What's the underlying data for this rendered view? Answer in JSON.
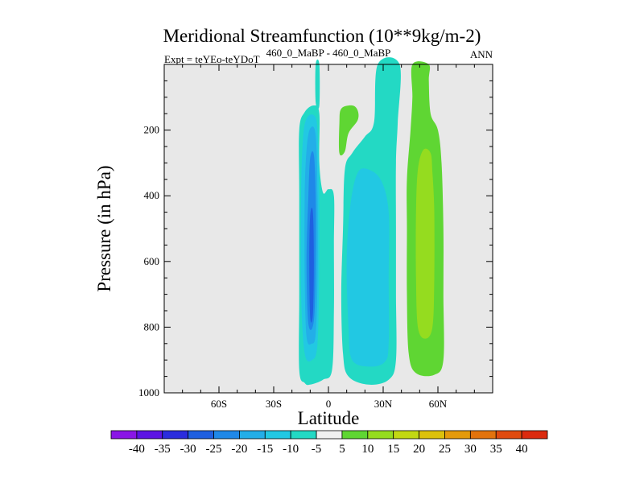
{
  "chart_data": {
    "type": "contour",
    "title": "Meridional Streamfunction (10**9kg/m-2)",
    "subtitle_left": "Expt = teYEo-teYDoT",
    "subtitle_center": "460_0_MaBP - 460_0_MaBP",
    "subtitle_right": "ANN",
    "xlabel": "Latitude",
    "ylabel": "Pressure (in hPa)",
    "xlim": [
      -90,
      90
    ],
    "ylim": [
      1000,
      0
    ],
    "x_ticks": [
      {
        "value": -60,
        "label": "60S"
      },
      {
        "value": -30,
        "label": "30S"
      },
      {
        "value": 0,
        "label": "0"
      },
      {
        "value": 30,
        "label": "30N"
      },
      {
        "value": 60,
        "label": "60N"
      }
    ],
    "y_ticks": [
      {
        "value": 200,
        "label": "200"
      },
      {
        "value": 400,
        "label": "400"
      },
      {
        "value": 600,
        "label": "600"
      },
      {
        "value": 800,
        "label": "800"
      },
      {
        "value": 1000,
        "label": "1000"
      }
    ],
    "background_color": "#e8e8e8",
    "colorbar": {
      "levels": [
        "-40",
        "-35",
        "-30",
        "-25",
        "-20",
        "-15",
        "-10",
        "-5",
        "5",
        "10",
        "15",
        "20",
        "25",
        "30",
        "35",
        "40"
      ],
      "colors": [
        "#8a16e6",
        "#5c14e3",
        "#2b2ddd",
        "#1f5fe0",
        "#1f88e8",
        "#23aee8",
        "#22c8e3",
        "#23d9c4",
        "#f0f0f0",
        "#5fd633",
        "#95dc1f",
        "#c2d812",
        "#dcc10c",
        "#e49a0c",
        "#e2730d",
        "#e04a0e",
        "#db2a0e"
      ]
    },
    "regions": [
      {
        "name": "southern-cell-outer",
        "level": "-10 to -5",
        "color": "#23d9c4",
        "outline": [
          [
            -13,
            970
          ],
          [
            -16,
            930
          ],
          [
            -16,
            700
          ],
          [
            -16,
            400
          ],
          [
            -16,
            200
          ],
          [
            -13,
            145
          ],
          [
            -8,
            125
          ],
          [
            -5,
            150
          ],
          [
            -5,
            300
          ],
          [
            -3,
            390
          ],
          [
            0,
            380
          ],
          [
            3,
            400
          ],
          [
            3,
            550
          ],
          [
            3,
            750
          ],
          [
            2,
            930
          ],
          [
            -3,
            960
          ],
          [
            -10,
            975
          ]
        ]
      },
      {
        "name": "southern-cell-band2",
        "level": "-15 to -10",
        "color": "#22c8e3",
        "outline": [
          [
            -13,
            880
          ],
          [
            -15,
            700
          ],
          [
            -15,
            400
          ],
          [
            -14,
            230
          ],
          [
            -12,
            165
          ],
          [
            -8,
            155
          ],
          [
            -6,
            200
          ],
          [
            -5,
            400
          ],
          [
            -5,
            600
          ],
          [
            -6,
            850
          ],
          [
            -9,
            900
          ]
        ]
      },
      {
        "name": "southern-cell-band3",
        "level": "-20 to -15",
        "color": "#23aee8",
        "outline": [
          [
            -12,
            830
          ],
          [
            -13,
            650
          ],
          [
            -13,
            400
          ],
          [
            -12,
            260
          ],
          [
            -10,
            195
          ],
          [
            -7,
            215
          ],
          [
            -6,
            400
          ],
          [
            -6,
            650
          ],
          [
            -7,
            820
          ],
          [
            -9,
            850
          ]
        ]
      },
      {
        "name": "southern-cell-band4",
        "level": "-25 to -20",
        "color": "#1f88e8",
        "outline": [
          [
            -11,
            790
          ],
          [
            -12,
            600
          ],
          [
            -11,
            400
          ],
          [
            -10,
            285
          ],
          [
            -8,
            275
          ],
          [
            -7,
            400
          ],
          [
            -7,
            600
          ],
          [
            -8,
            780
          ]
        ]
      },
      {
        "name": "southern-cell-core",
        "level": "-30 to -25",
        "color": "#1f5fe0",
        "outline": [
          [
            -10,
            770
          ],
          [
            -10.5,
            600
          ],
          [
            -10,
            460
          ],
          [
            -8.5,
            450
          ],
          [
            -8,
            600
          ],
          [
            -8.5,
            760
          ]
        ]
      },
      {
        "name": "northern-cell-outer",
        "level": "-10 to -5",
        "color": "#23d9c4",
        "outline": [
          [
            -7,
            0
          ],
          [
            -7,
            115
          ],
          [
            -5,
            125
          ],
          [
            -5,
            0
          ]
        ]
      },
      {
        "name": "northern-cell-outer-2",
        "level": "-10 to -5",
        "color": "#23d9c4",
        "outline": [
          [
            11,
            950
          ],
          [
            8,
            880
          ],
          [
            7,
            700
          ],
          [
            8,
            500
          ],
          [
            9,
            320
          ],
          [
            13,
            270
          ],
          [
            20,
            220
          ],
          [
            25,
            175
          ],
          [
            27,
            0
          ],
          [
            39,
            0
          ],
          [
            38,
            175
          ],
          [
            37,
            300
          ],
          [
            37,
            500
          ],
          [
            37,
            700
          ],
          [
            37,
            900
          ],
          [
            33,
            960
          ],
          [
            22,
            975
          ]
        ]
      },
      {
        "name": "northern-cell-band2",
        "level": "-15 to -10",
        "color": "#22c8e3",
        "outline": [
          [
            13,
            900
          ],
          [
            11,
            800
          ],
          [
            10,
            600
          ],
          [
            12,
            430
          ],
          [
            16,
            330
          ],
          [
            22,
            320
          ],
          [
            29,
            355
          ],
          [
            33,
            450
          ],
          [
            33,
            650
          ],
          [
            33,
            850
          ],
          [
            31,
            905
          ],
          [
            23,
            920
          ]
        ]
      },
      {
        "name": "subtropical-positive",
        "level": "5 to 10",
        "color": "#5fd633",
        "outline": [
          [
            6,
            270
          ],
          [
            6,
            180
          ],
          [
            7,
            135
          ],
          [
            13,
            125
          ],
          [
            16,
            140
          ],
          [
            16,
            170
          ],
          [
            11,
            210
          ],
          [
            9,
            265
          ]
        ]
      },
      {
        "name": "ferrel-cell-outer",
        "level": "5 to 10",
        "color": "#5fd633",
        "outline": [
          [
            46,
            0
          ],
          [
            55,
            0
          ],
          [
            55,
            50
          ],
          [
            56,
            150
          ],
          [
            60,
            200
          ],
          [
            62,
            300
          ],
          [
            63,
            500
          ],
          [
            63,
            700
          ],
          [
            63,
            900
          ],
          [
            58,
            945
          ],
          [
            48,
            940
          ],
          [
            44,
            880
          ],
          [
            43,
            700
          ],
          [
            43,
            500
          ],
          [
            43,
            350
          ],
          [
            45,
            200
          ],
          [
            46,
            100
          ]
        ]
      },
      {
        "name": "ferrel-cell-core",
        "level": "10 to 15",
        "color": "#95dc1f",
        "outline": [
          [
            49,
            800
          ],
          [
            48,
            650
          ],
          [
            48,
            450
          ],
          [
            49,
            320
          ],
          [
            52,
            260
          ],
          [
            56,
            270
          ],
          [
            57,
            330
          ],
          [
            58,
            450
          ],
          [
            58,
            650
          ],
          [
            57,
            800
          ],
          [
            53,
            835
          ]
        ]
      }
    ]
  }
}
